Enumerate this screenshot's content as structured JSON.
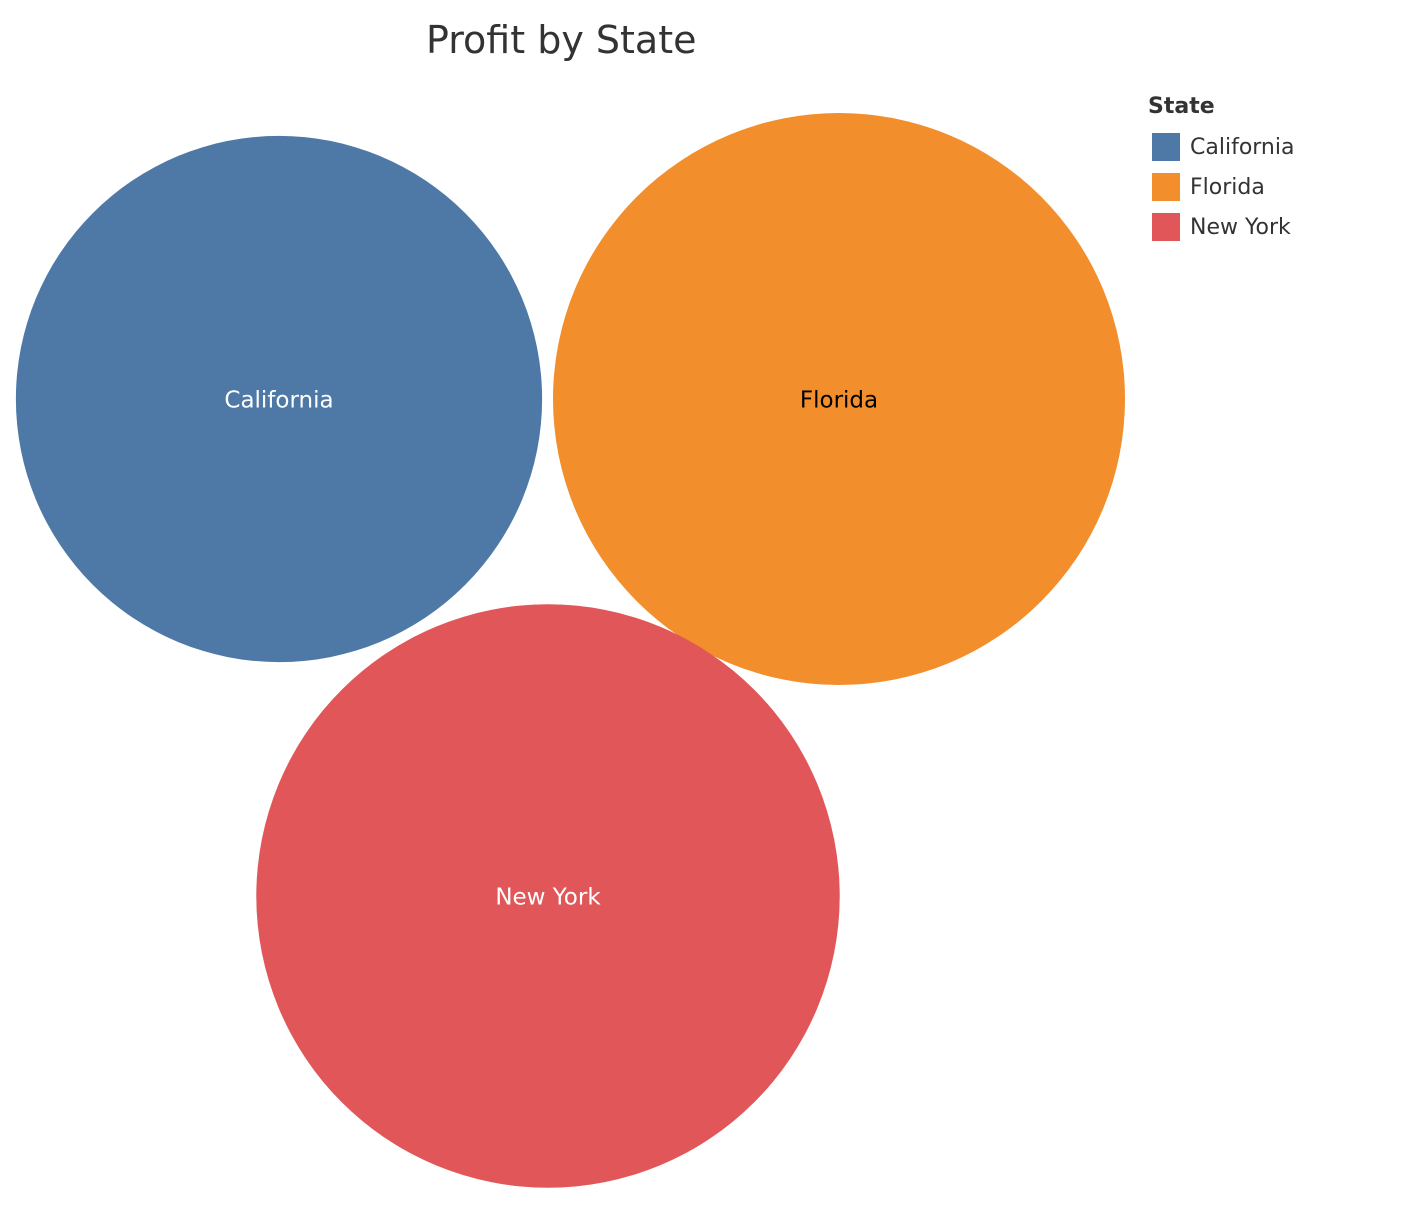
{
  "chart_data": {
    "type": "bubble",
    "title": "Profit by State",
    "legend": {
      "title": "State",
      "placement": "top-right"
    },
    "grid": false,
    "categories": [
      "California",
      "Florida",
      "New York"
    ],
    "series": [
      {
        "name": "California",
        "color": "#4e79a7",
        "label_color": "#ffffff",
        "relative_size": 0.92
      },
      {
        "name": "Florida",
        "color": "#f28e2b",
        "label_color": "#000000",
        "relative_size": 1.0
      },
      {
        "name": "New York",
        "color": "#e15759",
        "label_color": "#ffffff",
        "relative_size": 1.02
      }
    ]
  }
}
